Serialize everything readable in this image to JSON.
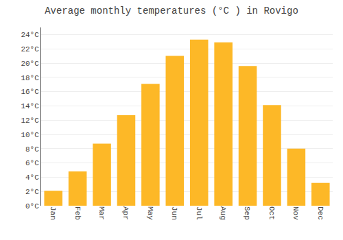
{
  "chart_data": {
    "type": "bar",
    "title": "Average monthly temperatures (°C ) in Rovigo",
    "categories": [
      "Jan",
      "Feb",
      "Mar",
      "Apr",
      "May",
      "Jun",
      "Jul",
      "Aug",
      "Sep",
      "Oct",
      "Nov",
      "Dec"
    ],
    "values": [
      2.1,
      4.8,
      8.7,
      12.7,
      17.1,
      21.0,
      23.3,
      22.9,
      19.6,
      14.1,
      8.0,
      3.2
    ],
    "color": "#FDB827",
    "ylim": [
      0,
      25
    ],
    "yticks": [
      {
        "value": 0,
        "label": "0°C"
      },
      {
        "value": 2,
        "label": "2°C"
      },
      {
        "value": 4,
        "label": "4°C"
      },
      {
        "value": 6,
        "label": "6°C"
      },
      {
        "value": 8,
        "label": "8°C"
      },
      {
        "value": 10,
        "label": "10°C"
      },
      {
        "value": 12,
        "label": "12°C"
      },
      {
        "value": 14,
        "label": "14°C"
      },
      {
        "value": 16,
        "label": "16°C"
      },
      {
        "value": 18,
        "label": "18°C"
      },
      {
        "value": 20,
        "label": "20°C"
      },
      {
        "value": 22,
        "label": "22°C"
      },
      {
        "value": 24,
        "label": "24°C"
      }
    ],
    "grid": true
  }
}
